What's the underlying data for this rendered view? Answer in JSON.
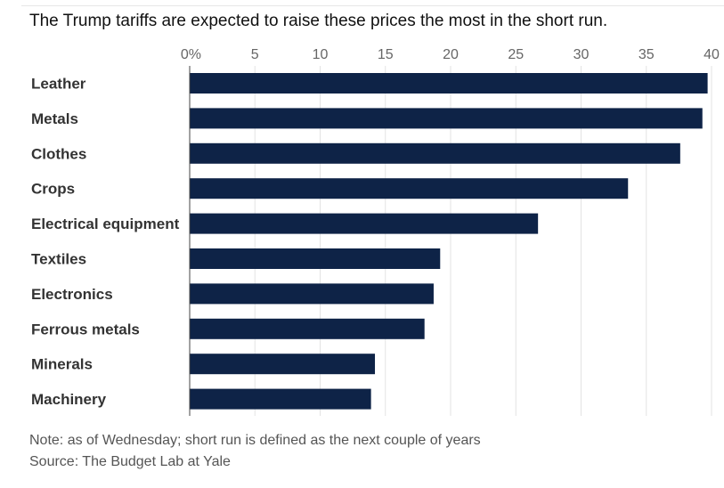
{
  "chart_data": {
    "type": "bar",
    "orientation": "horizontal",
    "title": "The Trump tariffs are expected to raise these prices the most in the short run.",
    "categories": [
      "Leather",
      "Metals",
      "Clothes",
      "Crops",
      "Electrical equipment",
      "Textiles",
      "Electronics",
      "Ferrous metals",
      "Minerals",
      "Machinery"
    ],
    "values": [
      39.7,
      39.3,
      37.6,
      33.6,
      26.7,
      19.2,
      18.7,
      18.0,
      14.2,
      13.9
    ],
    "xlim": [
      0,
      40
    ],
    "ticks": [
      0,
      5,
      10,
      15,
      20,
      25,
      30,
      35,
      40
    ],
    "tick_labels": [
      "0%",
      "5",
      "10",
      "15",
      "20",
      "25",
      "30",
      "35",
      "40"
    ],
    "xlabel": "",
    "ylabel": "",
    "grid": true,
    "bar_color": "#0e2347",
    "grid_color": "#e3e3e3"
  },
  "footer": {
    "note": "Note: as of Wednesday; short run is defined as the next couple of years",
    "source": "Source: The Budget Lab at Yale"
  }
}
